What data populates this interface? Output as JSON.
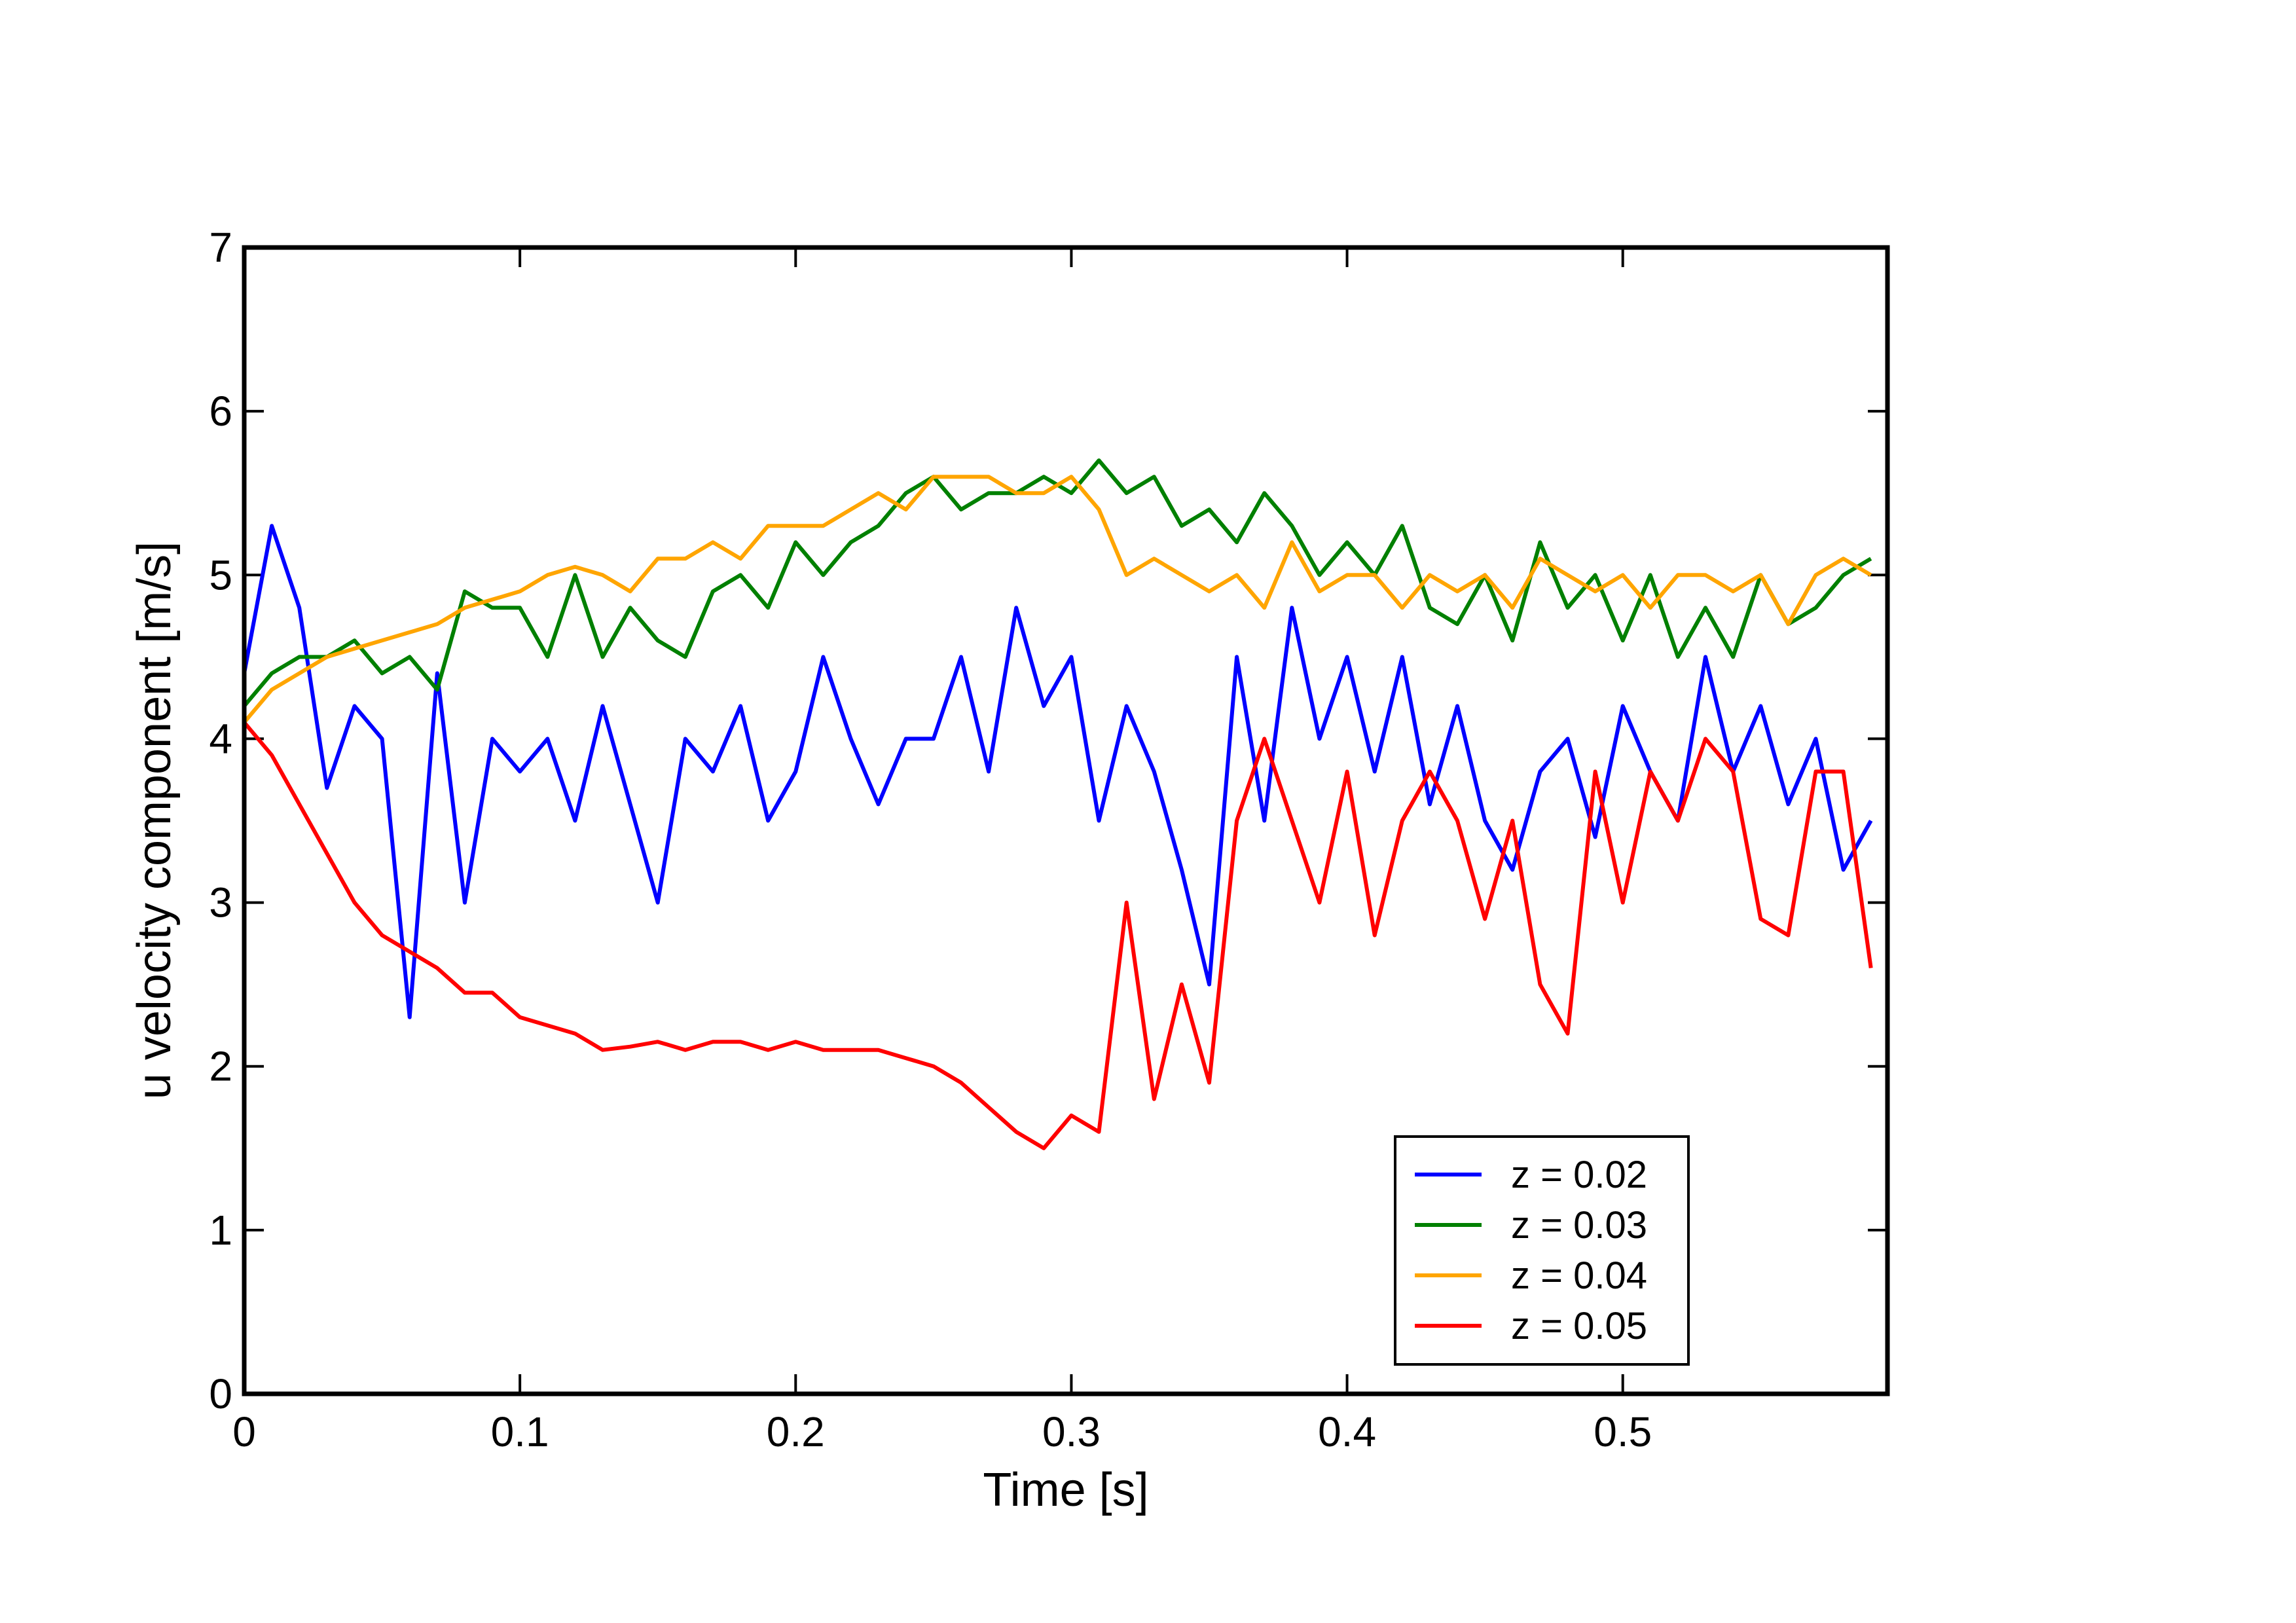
{
  "chart_data": {
    "type": "line",
    "xlabel": "Time [s]",
    "ylabel": "u velocity component [m/s]",
    "x": [
      0,
      0.01,
      0.02,
      0.03,
      0.04,
      0.05,
      0.06,
      0.07,
      0.08,
      0.09,
      0.1,
      0.11,
      0.12,
      0.13,
      0.14,
      0.15,
      0.16,
      0.17,
      0.18,
      0.19,
      0.2,
      0.21,
      0.22,
      0.23,
      0.24,
      0.25,
      0.26,
      0.27,
      0.28,
      0.29,
      0.3,
      0.31,
      0.32,
      0.33,
      0.34,
      0.35,
      0.36,
      0.37,
      0.38,
      0.39,
      0.4,
      0.41,
      0.42,
      0.43,
      0.44,
      0.45,
      0.46,
      0.47,
      0.48,
      0.49,
      0.5,
      0.51,
      0.52,
      0.53,
      0.54,
      0.55,
      0.56,
      0.57,
      0.58,
      0.59
    ],
    "series": [
      {
        "name": "z = 0.02",
        "color": "#0000ff",
        "values": [
          4.4,
          5.3,
          4.8,
          3.7,
          4.2,
          4.0,
          2.3,
          4.4,
          3.0,
          4.0,
          3.8,
          4.0,
          3.5,
          4.2,
          3.6,
          3.0,
          4.0,
          3.8,
          4.2,
          3.5,
          3.8,
          4.5,
          4.0,
          3.6,
          4.0,
          4.0,
          4.5,
          3.8,
          4.8,
          4.2,
          4.5,
          3.5,
          4.2,
          3.8,
          3.2,
          2.5,
          4.5,
          3.5,
          4.8,
          4.0,
          4.5,
          3.8,
          4.5,
          3.6,
          4.2,
          3.5,
          3.2,
          3.8,
          4.0,
          3.4,
          4.2,
          3.8,
          3.5,
          4.5,
          3.8,
          4.2,
          3.6,
          4.0,
          3.2,
          3.5
        ]
      },
      {
        "name": "z = 0.03",
        "color": "#008000",
        "values": [
          4.2,
          4.4,
          4.5,
          4.5,
          4.6,
          4.4,
          4.5,
          4.3,
          4.9,
          4.8,
          4.8,
          4.5,
          5.0,
          4.5,
          4.8,
          4.6,
          4.5,
          4.9,
          5.0,
          4.8,
          5.2,
          5.0,
          5.2,
          5.3,
          5.5,
          5.6,
          5.4,
          5.5,
          5.5,
          5.6,
          5.5,
          5.7,
          5.5,
          5.6,
          5.3,
          5.4,
          5.2,
          5.5,
          5.3,
          5.0,
          5.2,
          5.0,
          5.3,
          4.8,
          4.7,
          5.0,
          4.6,
          5.2,
          4.8,
          5.0,
          4.6,
          5.0,
          4.5,
          4.8,
          4.5,
          5.0,
          4.7,
          4.8,
          5.0,
          5.1
        ]
      },
      {
        "name": "z = 0.04",
        "color": "#ffa500",
        "values": [
          4.1,
          4.3,
          4.4,
          4.5,
          4.55,
          4.6,
          4.65,
          4.7,
          4.8,
          4.85,
          4.9,
          5.0,
          5.05,
          5.0,
          4.9,
          5.1,
          5.1,
          5.2,
          5.1,
          5.3,
          5.3,
          5.3,
          5.4,
          5.5,
          5.4,
          5.6,
          5.6,
          5.6,
          5.5,
          5.5,
          5.6,
          5.4,
          5.0,
          5.1,
          5.0,
          4.9,
          5.0,
          4.8,
          5.2,
          4.9,
          5.0,
          5.0,
          4.8,
          5.0,
          4.9,
          5.0,
          4.8,
          5.1,
          5.0,
          4.9,
          5.0,
          4.8,
          5.0,
          5.0,
          4.9,
          5.0,
          4.7,
          5.0,
          5.1,
          5.0
        ]
      },
      {
        "name": "z = 0.05",
        "color": "#ff0000",
        "values": [
          4.1,
          3.9,
          3.6,
          3.3,
          3.0,
          2.8,
          2.7,
          2.6,
          2.45,
          2.45,
          2.3,
          2.25,
          2.2,
          2.1,
          2.12,
          2.15,
          2.1,
          2.15,
          2.15,
          2.1,
          2.15,
          2.1,
          2.1,
          2.1,
          2.05,
          2.0,
          1.9,
          1.75,
          1.6,
          1.5,
          1.7,
          1.6,
          3.0,
          1.8,
          2.5,
          1.9,
          3.5,
          4.0,
          3.5,
          3.0,
          3.8,
          2.8,
          3.5,
          3.8,
          3.5,
          2.9,
          3.5,
          2.5,
          2.2,
          3.8,
          3.0,
          3.8,
          3.5,
          4.0,
          3.8,
          2.9,
          2.8,
          3.8,
          3.8,
          2.6
        ]
      }
    ],
    "xlim": [
      0,
      0.596
    ],
    "ylim": [
      0,
      7
    ],
    "xticks": [
      0,
      0.1,
      0.2,
      0.3,
      0.4,
      0.5
    ],
    "yticks": [
      0,
      1,
      2,
      3,
      4,
      5,
      6,
      7
    ],
    "grid": false,
    "legend": "lower right"
  }
}
